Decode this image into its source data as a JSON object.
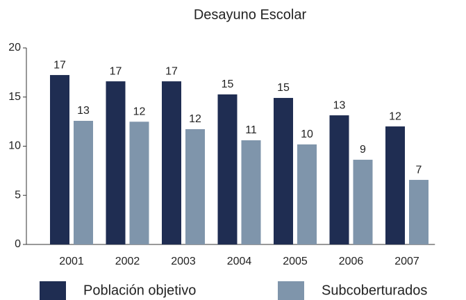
{
  "chart_data": {
    "type": "bar",
    "title": "Desayuno Escolar",
    "categories": [
      "2001",
      "2002",
      "2003",
      "2004",
      "2005",
      "2006",
      "2007"
    ],
    "series": [
      {
        "name": "Población objetivo",
        "color": "#1f2d52",
        "values": [
          17.24,
          16.6,
          16.6,
          15.27,
          14.91,
          13.14,
          12.01
        ],
        "value_labels": [
          17,
          17,
          17,
          15,
          15,
          13,
          12
        ]
      },
      {
        "name": "Subcoberturados",
        "color": "#7f95ab",
        "values": [
          12.58,
          12.49,
          11.73,
          10.6,
          10.18,
          8.62,
          6.57
        ],
        "value_labels": [
          13,
          12,
          12,
          11,
          10,
          9,
          7
        ]
      }
    ],
    "ylim": [
      0,
      20
    ],
    "yticks": [
      0,
      5,
      10,
      15,
      20
    ],
    "legend": "bottom"
  }
}
